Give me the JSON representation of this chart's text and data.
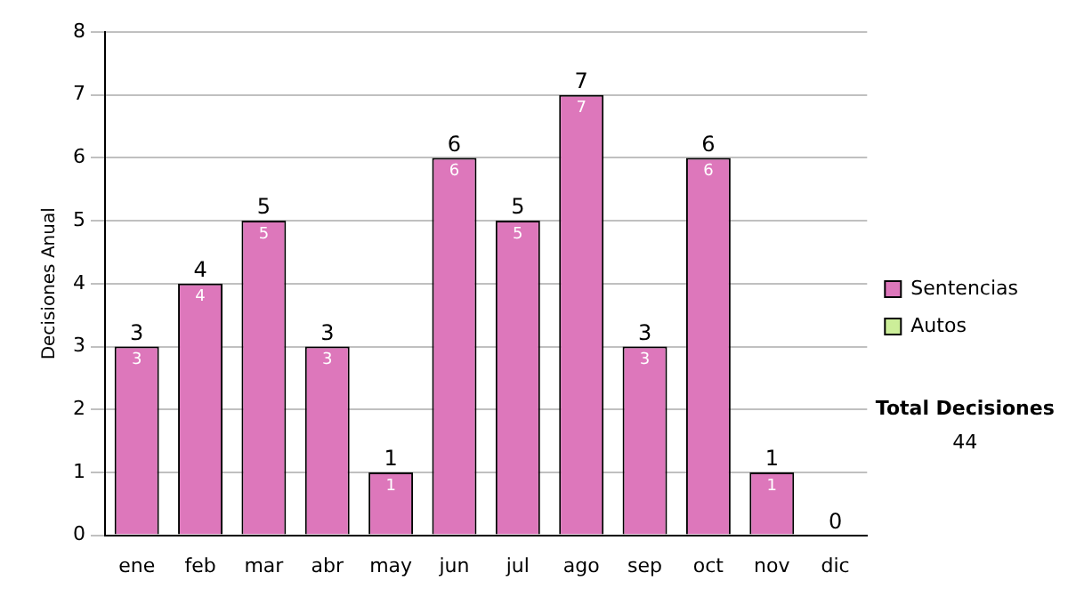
{
  "chart_data": {
    "type": "bar",
    "stacked": true,
    "ylabel": "Decisiones Anual",
    "categories": [
      "ene",
      "feb",
      "mar",
      "abr",
      "may",
      "jun",
      "jul",
      "ago",
      "sep",
      "oct",
      "nov",
      "dic"
    ],
    "series": [
      {
        "name": "Sentencias",
        "color": "#dd77bb",
        "values": [
          3,
          4,
          5,
          3,
          1,
          6,
          5,
          7,
          3,
          6,
          1,
          0
        ],
        "value_labels": [
          "3",
          "4",
          "5",
          "3",
          "1",
          "6",
          "5",
          "7",
          "3",
          "6",
          "1",
          null
        ]
      },
      {
        "name": "Autos",
        "color": "#ccee99",
        "values": [
          0,
          0,
          0,
          0,
          0,
          0,
          0,
          0,
          0,
          0,
          0,
          0
        ]
      }
    ],
    "totals": [
      "3",
      "4",
      "5",
      "3",
      "1",
      "6",
      "5",
      "7",
      "3",
      "6",
      "1",
      "0"
    ],
    "ylim": [
      0,
      8
    ],
    "yticks": [
      0,
      1,
      2,
      3,
      4,
      5,
      6,
      7,
      8
    ],
    "grid": "y",
    "legend": "right",
    "annotations": [
      "Total Decisiones",
      "44"
    ]
  }
}
